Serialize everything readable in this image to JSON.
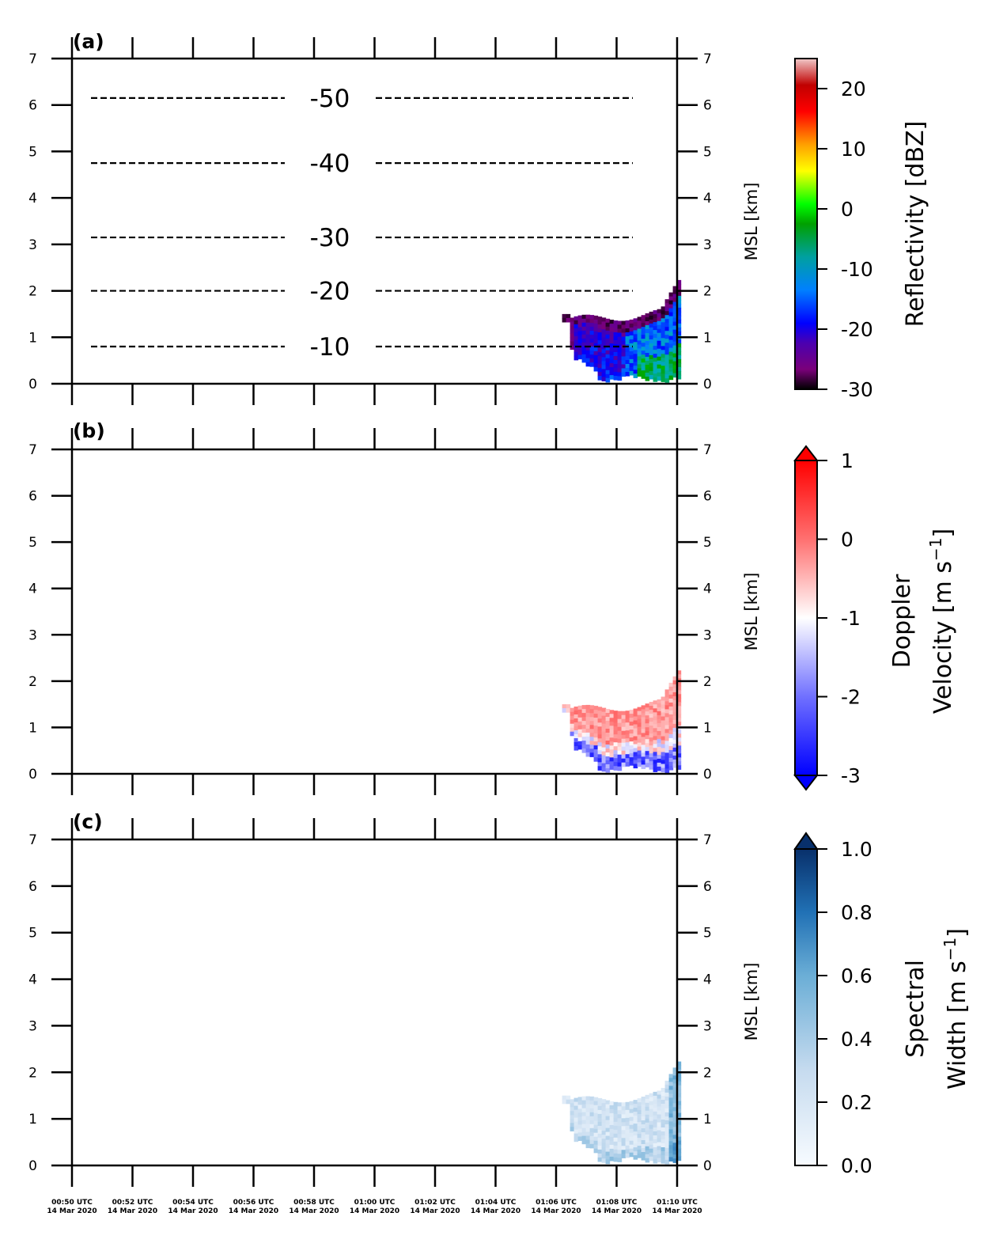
{
  "chart_data": [
    {
      "type": "heatmap",
      "panel_label": "(a)",
      "ylabel_right": "MSL [km]",
      "y_ticks": [
        "0",
        "1",
        "2",
        "3",
        "4",
        "5",
        "6",
        "7"
      ],
      "ylim": [
        0,
        7
      ],
      "xlim_minutes": [
        0,
        20
      ],
      "x_tick_labels": [
        "00:50 UTC",
        "00:52 UTC",
        "00:54 UTC",
        "00:56 UTC",
        "00:58 UTC",
        "01:00 UTC",
        "01:02 UTC",
        "01:04 UTC",
        "01:06 UTC",
        "01:08 UTC",
        "01:10 UTC"
      ],
      "x_date_label": "14 Mar 2020",
      "colorbar": {
        "label": "Reflectivity [dBZ]",
        "ticks": [
          "20",
          "10",
          "0",
          "-10",
          "-20",
          "-30"
        ],
        "tick_values": [
          20,
          10,
          0,
          -10,
          -20,
          -30
        ],
        "range": [
          -30,
          25
        ],
        "extend": "neither"
      },
      "isotherms": [
        {
          "label": "-50",
          "height_km": 6.15
        },
        {
          "label": "-40",
          "height_km": 4.75
        },
        {
          "label": "-30",
          "height_km": 3.15
        },
        {
          "label": "-20",
          "height_km": 2.0
        },
        {
          "label": "-10",
          "height_km": 0.8
        }
      ],
      "echo": {
        "start_minute": 16.2,
        "end_minute": 20,
        "top_km": 2.2,
        "base_km": 0.15
      }
    },
    {
      "type": "heatmap",
      "panel_label": "(b)",
      "ylabel_right": "MSL [km]",
      "y_ticks": [
        "0",
        "1",
        "2",
        "3",
        "4",
        "5",
        "6",
        "7"
      ],
      "ylim": [
        0,
        7
      ],
      "colorbar": {
        "label_line1": "Doppler",
        "label_line2": "Velocity [m s",
        "label_sup": "−1",
        "label_close": "]",
        "ticks": [
          "1",
          "0",
          "-1",
          "-2",
          "-3"
        ],
        "tick_values": [
          1,
          0,
          -1,
          -2,
          -3
        ],
        "range": [
          -3,
          1
        ],
        "extend": "both"
      },
      "echo": {
        "start_minute": 16.2,
        "end_minute": 20,
        "top_km": 2.2,
        "base_km": 0.15
      }
    },
    {
      "type": "heatmap",
      "panel_label": "(c)",
      "ylabel_right": "MSL [km]",
      "y_ticks": [
        "0",
        "1",
        "2",
        "3",
        "4",
        "5",
        "6",
        "7"
      ],
      "ylim": [
        0,
        7
      ],
      "colorbar": {
        "label_line1": "Spectral",
        "label_line2": "Width [m s",
        "label_sup": "−1",
        "label_close": "]",
        "ticks": [
          "1.0",
          "0.8",
          "0.6",
          "0.4",
          "0.2",
          "0.0"
        ],
        "tick_values": [
          1.0,
          0.8,
          0.6,
          0.4,
          0.2,
          0.0
        ],
        "range": [
          0,
          1
        ],
        "extend": "max"
      },
      "echo": {
        "start_minute": 16.2,
        "end_minute": 20,
        "top_km": 2.2,
        "base_km": 0.15
      }
    }
  ],
  "colors": {
    "axis": "#000000",
    "refl_cmap": [
      "#000000",
      "#7a007a",
      "#4b00b0",
      "#0000ff",
      "#0080ff",
      "#00b0b0",
      "#00a000",
      "#00ff00",
      "#ffff00",
      "#ffa000",
      "#ff0000",
      "#b00000",
      "#e8b0b0"
    ],
    "vel_cmap": [
      "#0000ff",
      "#8080ff",
      "#ffffff",
      "#ff8080",
      "#ff0000"
    ],
    "sw_cmap": [
      "#f7fbff",
      "#c6dbef",
      "#6baed6",
      "#2171b5",
      "#08306b"
    ]
  }
}
